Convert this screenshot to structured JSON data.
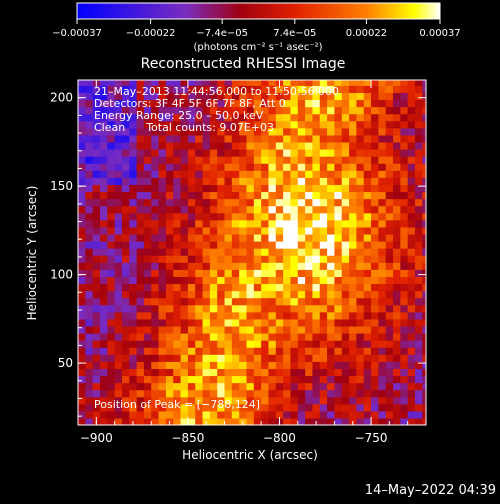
{
  "chart_data": {
    "type": "heatmap",
    "title": "Reconstructed RHESSI Image",
    "xlabel": "Heliocentric X (arcsec)",
    "ylabel": "Heliocentric Y (arcsec)",
    "xlim": [
      -910,
      -720
    ],
    "ylim": [
      15,
      210
    ],
    "x_ticks": [
      -900,
      -850,
      -800,
      -750
    ],
    "x_tick_labels": [
      "−900",
      "−850",
      "−800",
      "−750"
    ],
    "y_ticks": [
      50,
      100,
      150,
      200
    ],
    "y_tick_labels": [
      "50",
      "100",
      "150",
      "200"
    ],
    "colorbar": {
      "range": [
        -0.00037,
        0.00037
      ],
      "ticks": [
        -0.00037,
        -0.00022,
        -7.4e-05,
        7.4e-05,
        0.00022,
        0.00037
      ],
      "tick_labels": [
        "−0.00037",
        "−0.00022",
        "−7.4e−05",
        "7.4e−05",
        "0.00022",
        "0.00037"
      ],
      "unit_label": "(photons cm⁻² s⁻¹ asec⁻²)",
      "colors": [
        "#0000ff",
        "#7a2cc0",
        "#a00010",
        "#e02000",
        "#ff8000",
        "#ffff00",
        "#ffffff"
      ]
    },
    "annotations": [
      "21–May–2013 11:44:56.000 to 11:50:56.000",
      "Detectors: 3F 4F 5F 6F 7F 8F, Att 0",
      "Energy Range: 25.0 – 50.0 keV",
      "Clean      Total counts: 9.07E+03"
    ],
    "peak_label": "Position of Peak = [−788,124]",
    "peak_position": [
      -788,
      124
    ],
    "grid": false
  },
  "timestamp": "14–May–2022 04:39"
}
